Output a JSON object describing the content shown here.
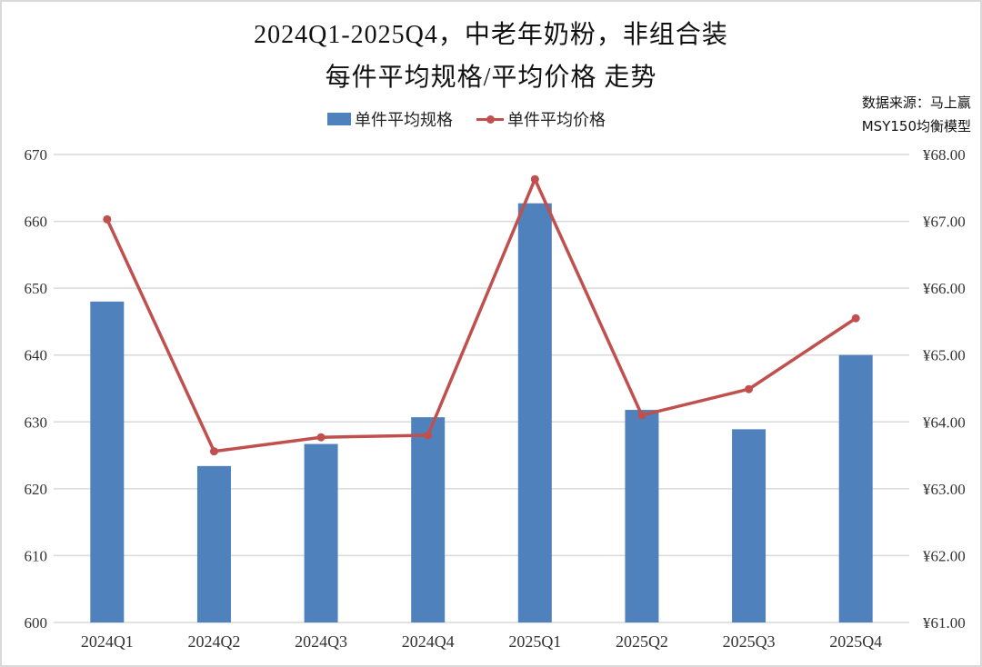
{
  "title_line1": "2024Q1-2025Q4，中老年奶粉，非组合装",
  "title_line2": "每件平均规格/平均价格 走势",
  "source_line1": "数据来源：马上赢",
  "source_line2": "MSY150均衡模型",
  "legend": {
    "bar_label": "单件平均规格",
    "line_label": "单件平均价格"
  },
  "colors": {
    "bar": "#4f81bd",
    "line": "#c0504d",
    "grid": "#d9d9d9"
  },
  "chart_data": {
    "type": "bar+line",
    "title": "2024Q1-2025Q4，中老年奶粉，非组合装 每件平均规格/平均价格 走势",
    "categories": [
      "2024Q1",
      "2024Q2",
      "2024Q3",
      "2024Q4",
      "2025Q1",
      "2025Q2",
      "2025Q3",
      "2025Q4"
    ],
    "series": [
      {
        "name": "单件平均规格",
        "type": "bar",
        "axis": "left",
        "values": [
          648.0,
          623.4,
          626.7,
          630.7,
          662.7,
          631.8,
          628.9,
          640.0
        ]
      },
      {
        "name": "单件平均价格",
        "type": "line",
        "axis": "right",
        "values": [
          67.03,
          63.56,
          63.77,
          63.8,
          67.63,
          64.1,
          64.49,
          65.55
        ]
      }
    ],
    "left_axis": {
      "ylim": [
        600,
        670
      ],
      "ticks": [
        "600",
        "610",
        "620",
        "630",
        "640",
        "650",
        "660",
        "670"
      ]
    },
    "right_axis": {
      "ylim": [
        61,
        68
      ],
      "ticks": [
        "¥61.00",
        "¥62.00",
        "¥63.00",
        "¥64.00",
        "¥65.00",
        "¥66.00",
        "¥67.00",
        "¥68.00"
      ]
    },
    "xlabel": "",
    "ylabel": "",
    "grid": true,
    "legend_position": "top"
  }
}
